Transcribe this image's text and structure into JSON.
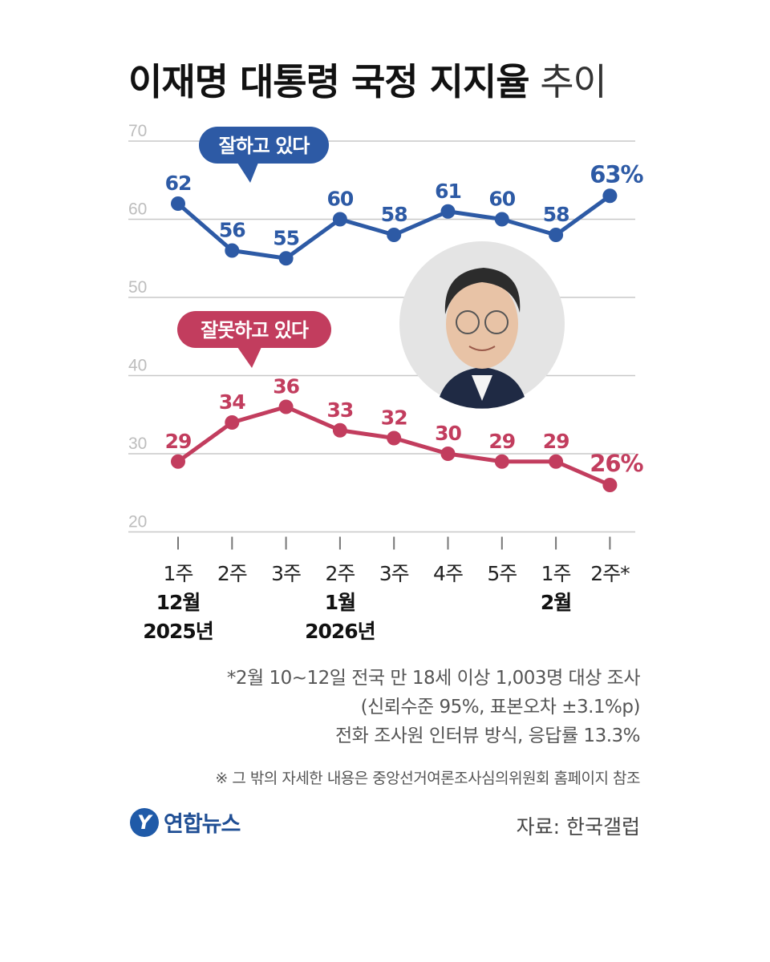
{
  "title": {
    "bold": "이재명 대통령 국정 지지율",
    "light": "추이"
  },
  "chart_data": {
    "type": "line",
    "categories": [
      "1주",
      "2주",
      "3주",
      "2주",
      "3주",
      "4주",
      "5주",
      "1주",
      "2주*"
    ],
    "category_groups": [
      {
        "month": "12월",
        "year": "2025년",
        "at_index": 0
      },
      {
        "month": "1월",
        "year": "2026년",
        "at_index": 3
      },
      {
        "month": "2월",
        "year": "",
        "at_index": 7
      }
    ],
    "yticks": [
      "70",
      "60",
      "50",
      "40",
      "30",
      "20"
    ],
    "ylim": [
      20,
      70
    ],
    "grid": true,
    "series": [
      {
        "name": "잘하고 있다",
        "color": "#2d5aa5",
        "values": [
          62,
          56,
          55,
          60,
          58,
          61,
          60,
          58,
          63
        ],
        "labels": [
          "62",
          "56",
          "55",
          "60",
          "58",
          "61",
          "60",
          "58",
          "63%"
        ]
      },
      {
        "name": "잘못하고 있다",
        "color": "#c23d5e",
        "values": [
          29,
          34,
          36,
          33,
          32,
          30,
          29,
          29,
          26
        ],
        "labels": [
          "29",
          "34",
          "36",
          "33",
          "32",
          "30",
          "29",
          "29",
          "26%"
        ]
      }
    ]
  },
  "notes": [
    "*2월 10~12일 전국 만 18세 이상 1,003명 대상 조사",
    "(신뢰수준 95%, 표본오차 ±3.1%p)",
    "전화 조사원 인터뷰 방식, 응답률 13.3%"
  ],
  "reference": "※ 그 밖의 자세한 내용은 중앙선거여론조사심의위원회 홈페이지 참조",
  "logo": {
    "mark": "Y",
    "name": "연합뉴스"
  },
  "source": "자료: 한국갤럽"
}
